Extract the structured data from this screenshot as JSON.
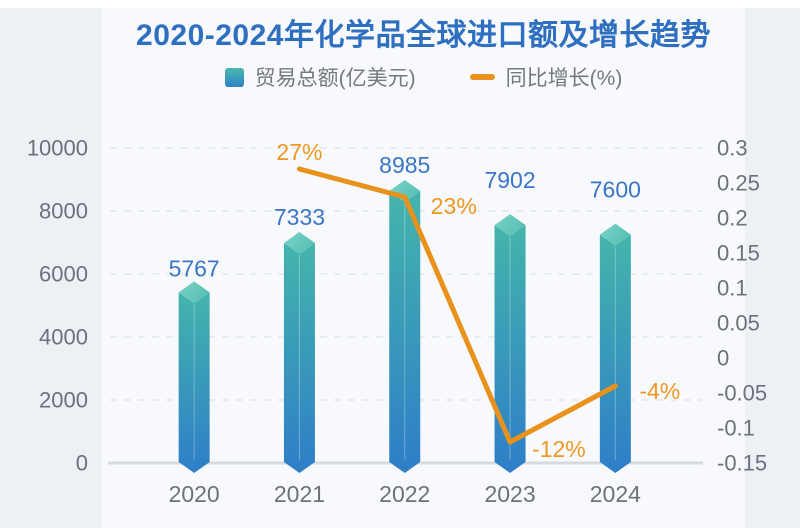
{
  "title": "2020-2024年化学品全球进口额及增长趋势",
  "legend": {
    "bar_label": "贸易总额(亿美元)",
    "line_label": "同比增长(%)"
  },
  "colors": {
    "title": "#2e6fc0",
    "bar_gradient_top": "#44b4ab",
    "bar_gradient_bottom": "#2e7ec8",
    "diamond_light": "#7dd2c7",
    "diamond_dark": "#56c0b4",
    "line": "#e8921c",
    "line_label": "#ee9822",
    "value_label": "#3b76c6",
    "axis_label": "#6e7179",
    "grid_line": "#dadde3",
    "axis_line": "#d7dade",
    "canvas_bg": "#f7f9fc",
    "page_bg": "#edf0f5"
  },
  "chart_data": {
    "type": "bar",
    "subtype": "combo-bar-line-dual-axis",
    "title": "2020-2024年化学品全球进口额及增长趋势",
    "categories": [
      "2020",
      "2021",
      "2022",
      "2023",
      "2024"
    ],
    "series": [
      {
        "name": "贸易总额(亿美元)",
        "type": "bar",
        "y_axis": "left",
        "values": [
          5767,
          7333,
          8985,
          7902,
          7600
        ],
        "data_labels": [
          "5767",
          "7333",
          "8985",
          "7902",
          "7600"
        ]
      },
      {
        "name": "同比增长(%)",
        "type": "line",
        "y_axis": "right",
        "values": [
          null,
          0.27,
          0.23,
          -0.12,
          -0.04
        ],
        "data_labels": [
          "",
          "27%",
          "23%",
          "-12%",
          "-4%"
        ]
      }
    ],
    "y_axis_left": {
      "min": 0,
      "max": 10000,
      "tick_labels": [
        "10000",
        "8000",
        "6000",
        "4000",
        "2000",
        "0"
      ]
    },
    "y_axis_right": {
      "min": -0.15,
      "max": 0.3,
      "tick_labels": [
        "0.3",
        "0.25",
        "0.2",
        "0.15",
        "0.1",
        "0.05",
        "0",
        "-0.05",
        "-0.1",
        "-0.15"
      ]
    },
    "grid": "horizontal dashed lines on, vertical off",
    "legend_position": "top center"
  }
}
